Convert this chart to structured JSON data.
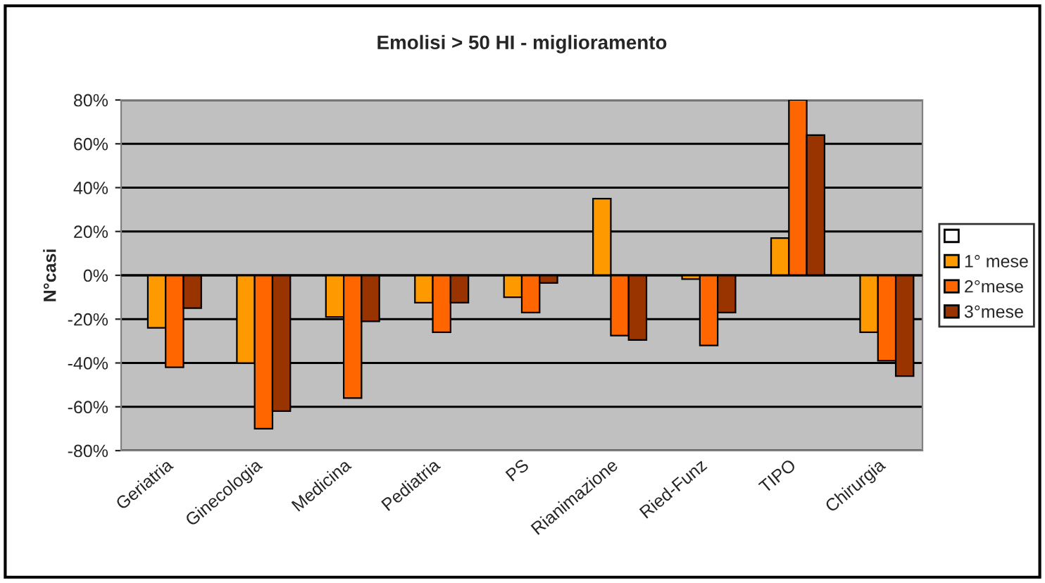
{
  "chart_data": {
    "type": "bar",
    "title": "Emolisi > 50 HI - miglioramento",
    "ylabel": "N°casi",
    "categories": [
      "Geriatria",
      "Ginecologia",
      "Medicina",
      "Pediatria",
      "PS",
      "Rianimazione",
      "Ried-Funz",
      "TIPO",
      "Chirurgia"
    ],
    "series": [
      {
        "color": "#ffffff",
        "values": [
          null,
          null,
          null,
          null,
          null,
          null,
          null,
          null,
          null
        ]
      },
      {
        "name": "1° mese",
        "color": "#ff9900",
        "values": [
          -24,
          -40,
          -19,
          -12.5,
          -10,
          35,
          -1.7,
          17,
          -26
        ]
      },
      {
        "name": "2°mese",
        "color": "#ff6600",
        "values": [
          -42,
          -70,
          -56,
          -26,
          -17,
          -27.5,
          -32,
          80,
          -39
        ]
      },
      {
        "name": "3°mese",
        "color": "#993300",
        "values": [
          -15,
          -62,
          -21,
          -12.5,
          -3.5,
          -29.5,
          -17,
          64,
          -46
        ]
      }
    ],
    "ylim": [
      -80,
      80
    ],
    "yticks": [
      {
        "value": -80,
        "label": "-80%"
      },
      {
        "value": -60,
        "label": "-60%"
      },
      {
        "value": -40,
        "label": "-40%"
      },
      {
        "value": -20,
        "label": "-20%"
      },
      {
        "value": 0,
        "label": "0%"
      },
      {
        "value": 20,
        "label": "20%"
      },
      {
        "value": 40,
        "label": "40%"
      },
      {
        "value": 60,
        "label": "60%"
      },
      {
        "value": 80,
        "label": "80%"
      }
    ],
    "grid": "y",
    "legend": "right"
  }
}
